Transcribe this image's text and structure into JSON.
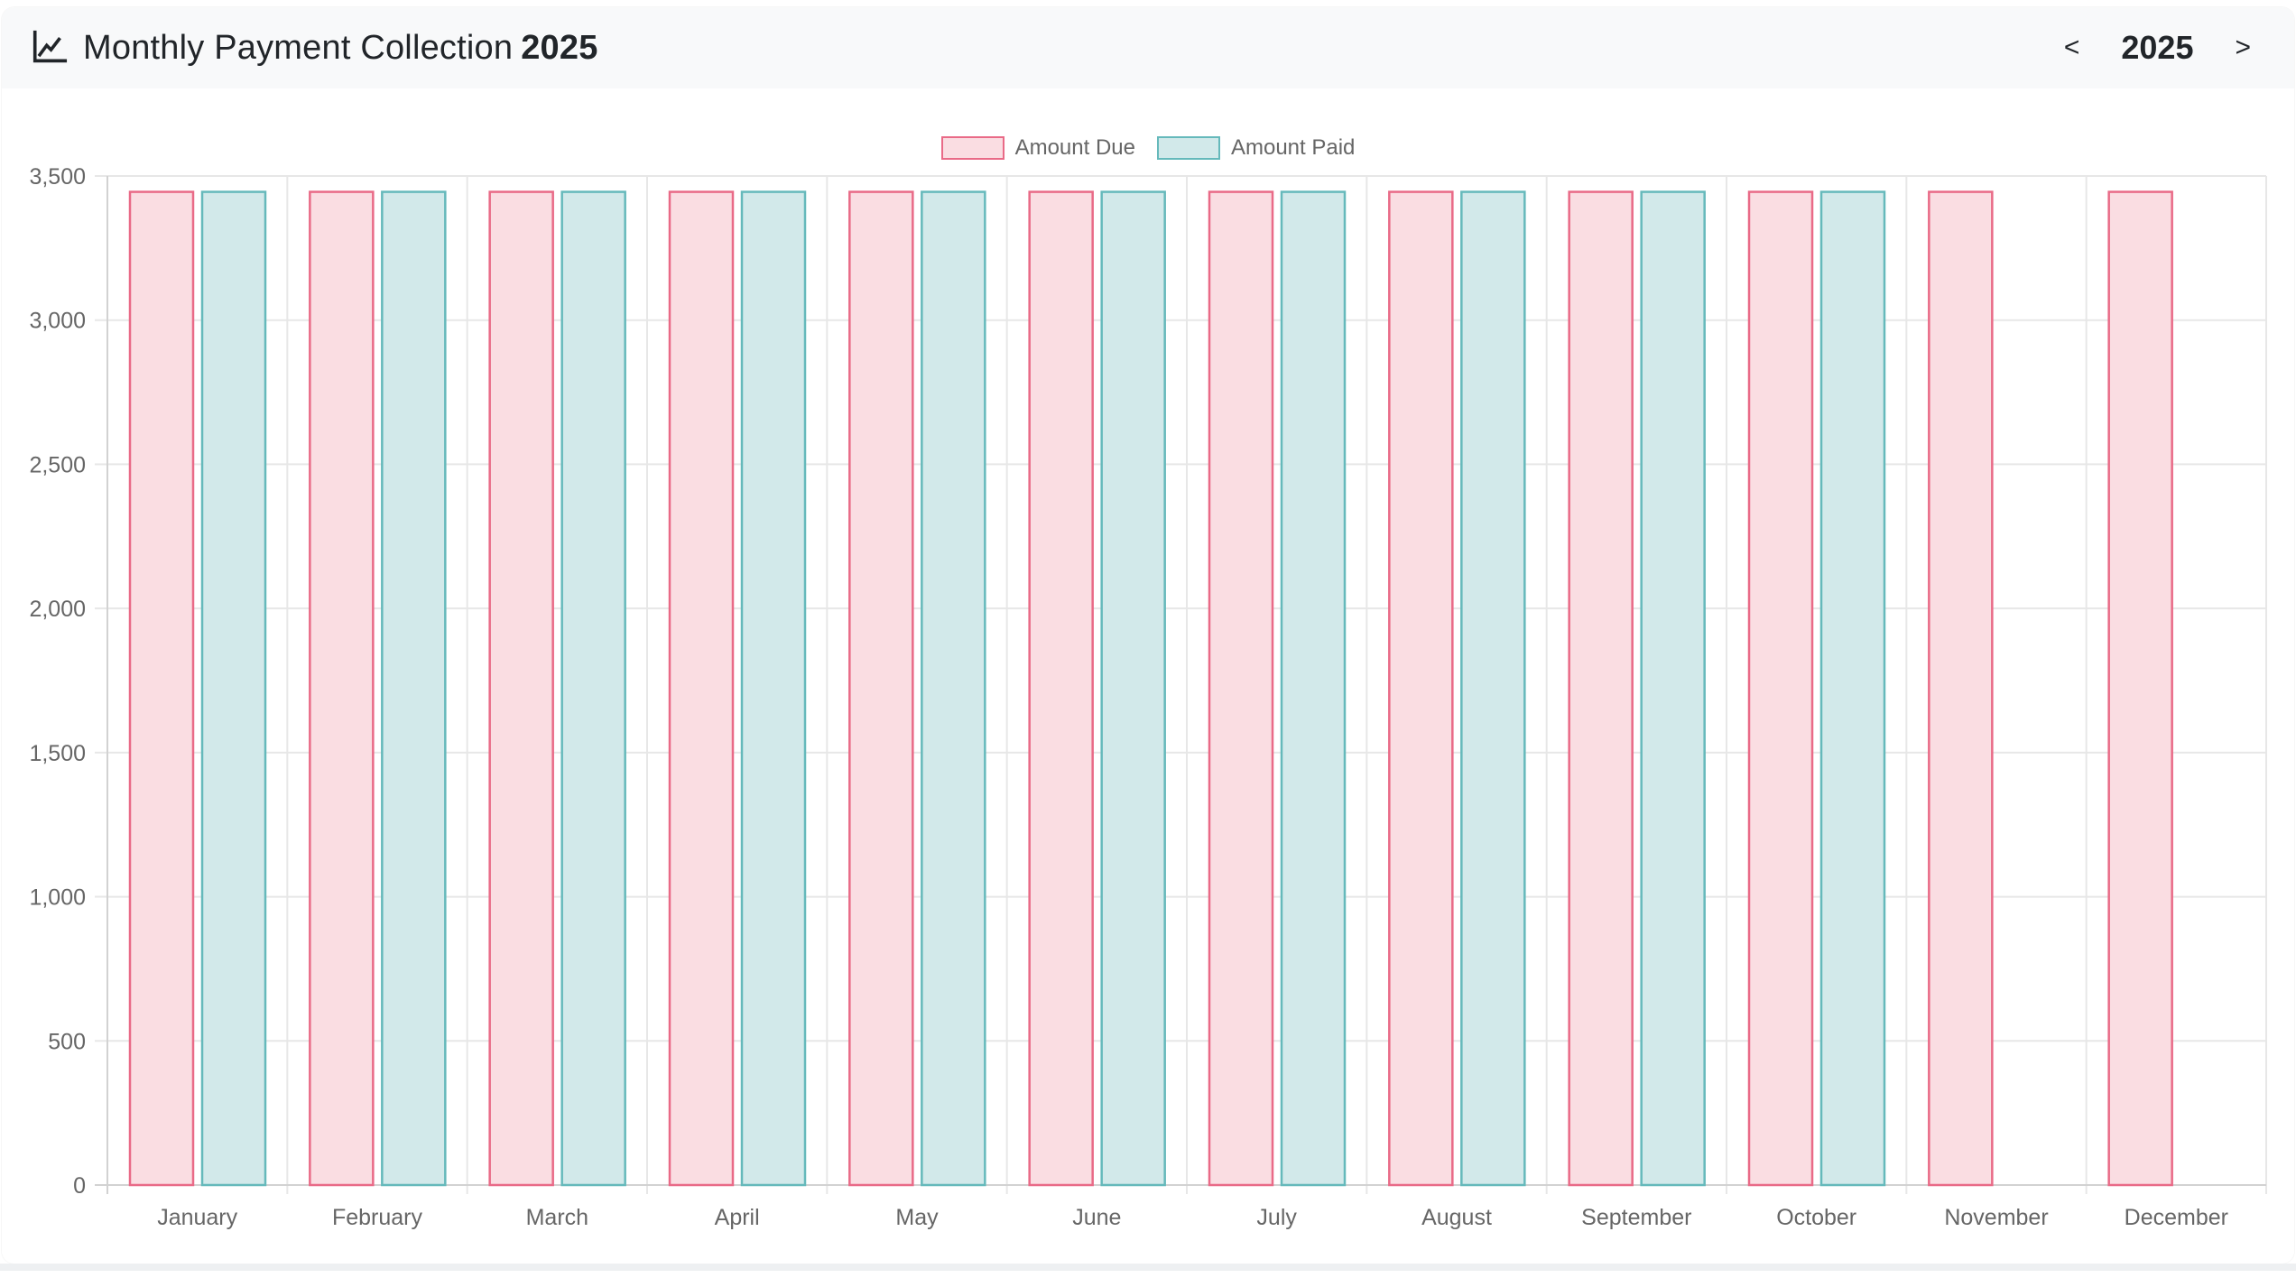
{
  "header": {
    "title": "Monthly Payment Collection",
    "year": "2025"
  },
  "year_nav": {
    "prev_label": "<",
    "year": "2025",
    "next_label": ">"
  },
  "chart_data": {
    "type": "bar",
    "title": "Monthly Payment Collection 2025",
    "categories": [
      "January",
      "February",
      "March",
      "April",
      "May",
      "June",
      "July",
      "August",
      "September",
      "October",
      "November",
      "December"
    ],
    "series": [
      {
        "name": "Amount Due",
        "fill_color": "#fadde2",
        "border_color": "#e96a87",
        "values": [
          3445,
          3445,
          3445,
          3445,
          3445,
          3445,
          3445,
          3445,
          3445,
          3445,
          3445,
          3445
        ]
      },
      {
        "name": "Amount Paid",
        "fill_color": "#d2e9ea",
        "border_color": "#65b9bb",
        "values": [
          3445,
          3445,
          3445,
          3445,
          3445,
          3445,
          3445,
          3445,
          3445,
          3445,
          0,
          0
        ]
      }
    ],
    "xlabel": "",
    "ylabel": "",
    "ylim": [
      0,
      3500
    ],
    "ytick_step": 500,
    "grid": true,
    "legend_position": "top",
    "grid_color": "#e7e7e7",
    "axis_color": "#d2d2d2",
    "tick_color": "#666666"
  }
}
